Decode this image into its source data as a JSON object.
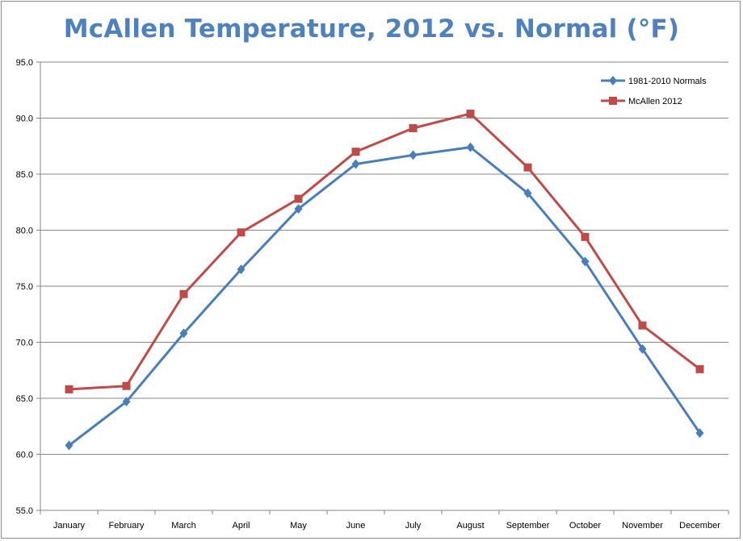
{
  "chart_data": {
    "type": "line",
    "title": "McAllen Temperature, 2012 vs. Normal (°F)",
    "categories": [
      "January",
      "February",
      "March",
      "April",
      "May",
      "June",
      "July",
      "August",
      "September",
      "October",
      "November",
      "December"
    ],
    "series": [
      {
        "name": "1981-2010 Normals",
        "color": "#4a7ebb",
        "marker": "diamond",
        "values": [
          60.8,
          64.7,
          70.8,
          76.5,
          81.9,
          85.9,
          86.7,
          87.4,
          83.3,
          77.2,
          69.4,
          61.9
        ]
      },
      {
        "name": "McAllen 2012",
        "color": "#be4b48",
        "marker": "square",
        "values": [
          65.8,
          66.1,
          74.3,
          79.8,
          82.8,
          87.0,
          89.1,
          90.4,
          85.6,
          79.4,
          71.5,
          67.6
        ]
      }
    ],
    "ylim": [
      55.0,
      95.0
    ],
    "yticks": [
      "55.0",
      "60.0",
      "65.0",
      "70.0",
      "75.0",
      "80.0",
      "85.0",
      "90.0",
      "95.0"
    ],
    "grid": true,
    "legend_position": "top-right",
    "title_color": "#4f81bd"
  }
}
